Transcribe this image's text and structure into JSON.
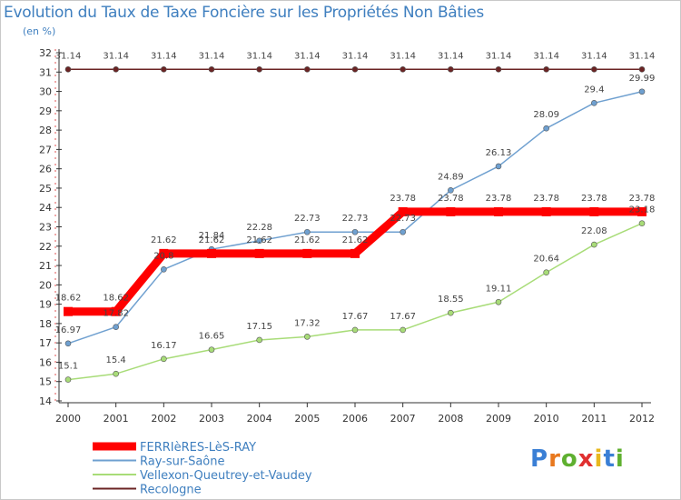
{
  "title": "Evolution du Taux de Taxe Foncière sur les Propriétés Non Bâties",
  "unit": "(en %)",
  "logo": {
    "text": "Proxiti",
    "colors": [
      "#3a7fd5",
      "#e8781e",
      "#5fb030",
      "#e03030",
      "#e8b81e",
      "#3a7fd5",
      "#5fb030"
    ]
  },
  "chart_data": {
    "type": "line",
    "title": "Evolution du Taux de Taxe Foncière sur les Propriétés Non Bâties",
    "ylabel": "(en %)",
    "xlabel": "",
    "categories": [
      "2000",
      "2001",
      "2002",
      "2003",
      "2004",
      "2005",
      "2006",
      "2007",
      "2008",
      "2009",
      "2010",
      "2011",
      "2012"
    ],
    "ylim": [
      14,
      32
    ],
    "yticks": [
      14,
      15,
      16,
      17,
      18,
      19,
      20,
      21,
      22,
      23,
      24,
      25,
      26,
      27,
      28,
      29,
      30,
      31,
      32
    ],
    "grid": false,
    "legend_position": "bottom-left",
    "series": [
      {
        "name": "FERRIèRES-LèS-RAY",
        "color": "#ff0000",
        "values": [
          18.62,
          18.62,
          21.62,
          21.62,
          21.62,
          21.62,
          21.62,
          23.78,
          23.78,
          23.78,
          23.78,
          23.78,
          23.78
        ]
      },
      {
        "name": "Ray-sur-Saône",
        "color": "#6fa0d0",
        "values": [
          16.97,
          17.82,
          20.8,
          21.84,
          22.28,
          22.73,
          22.73,
          22.73,
          24.89,
          26.13,
          28.09,
          29.4,
          29.99
        ]
      },
      {
        "name": "Vellexon-Queutrey-et-Vaudey",
        "color": "#a8dc78",
        "values": [
          15.1,
          15.4,
          16.17,
          16.65,
          17.15,
          17.32,
          17.67,
          17.67,
          18.55,
          19.11,
          20.64,
          22.08,
          23.18
        ]
      },
      {
        "name": "Recologne",
        "color": "#6b2424",
        "values": [
          31.14,
          31.14,
          31.14,
          31.14,
          31.14,
          31.14,
          31.14,
          31.14,
          31.14,
          31.14,
          31.14,
          31.14,
          31.14
        ]
      }
    ]
  }
}
